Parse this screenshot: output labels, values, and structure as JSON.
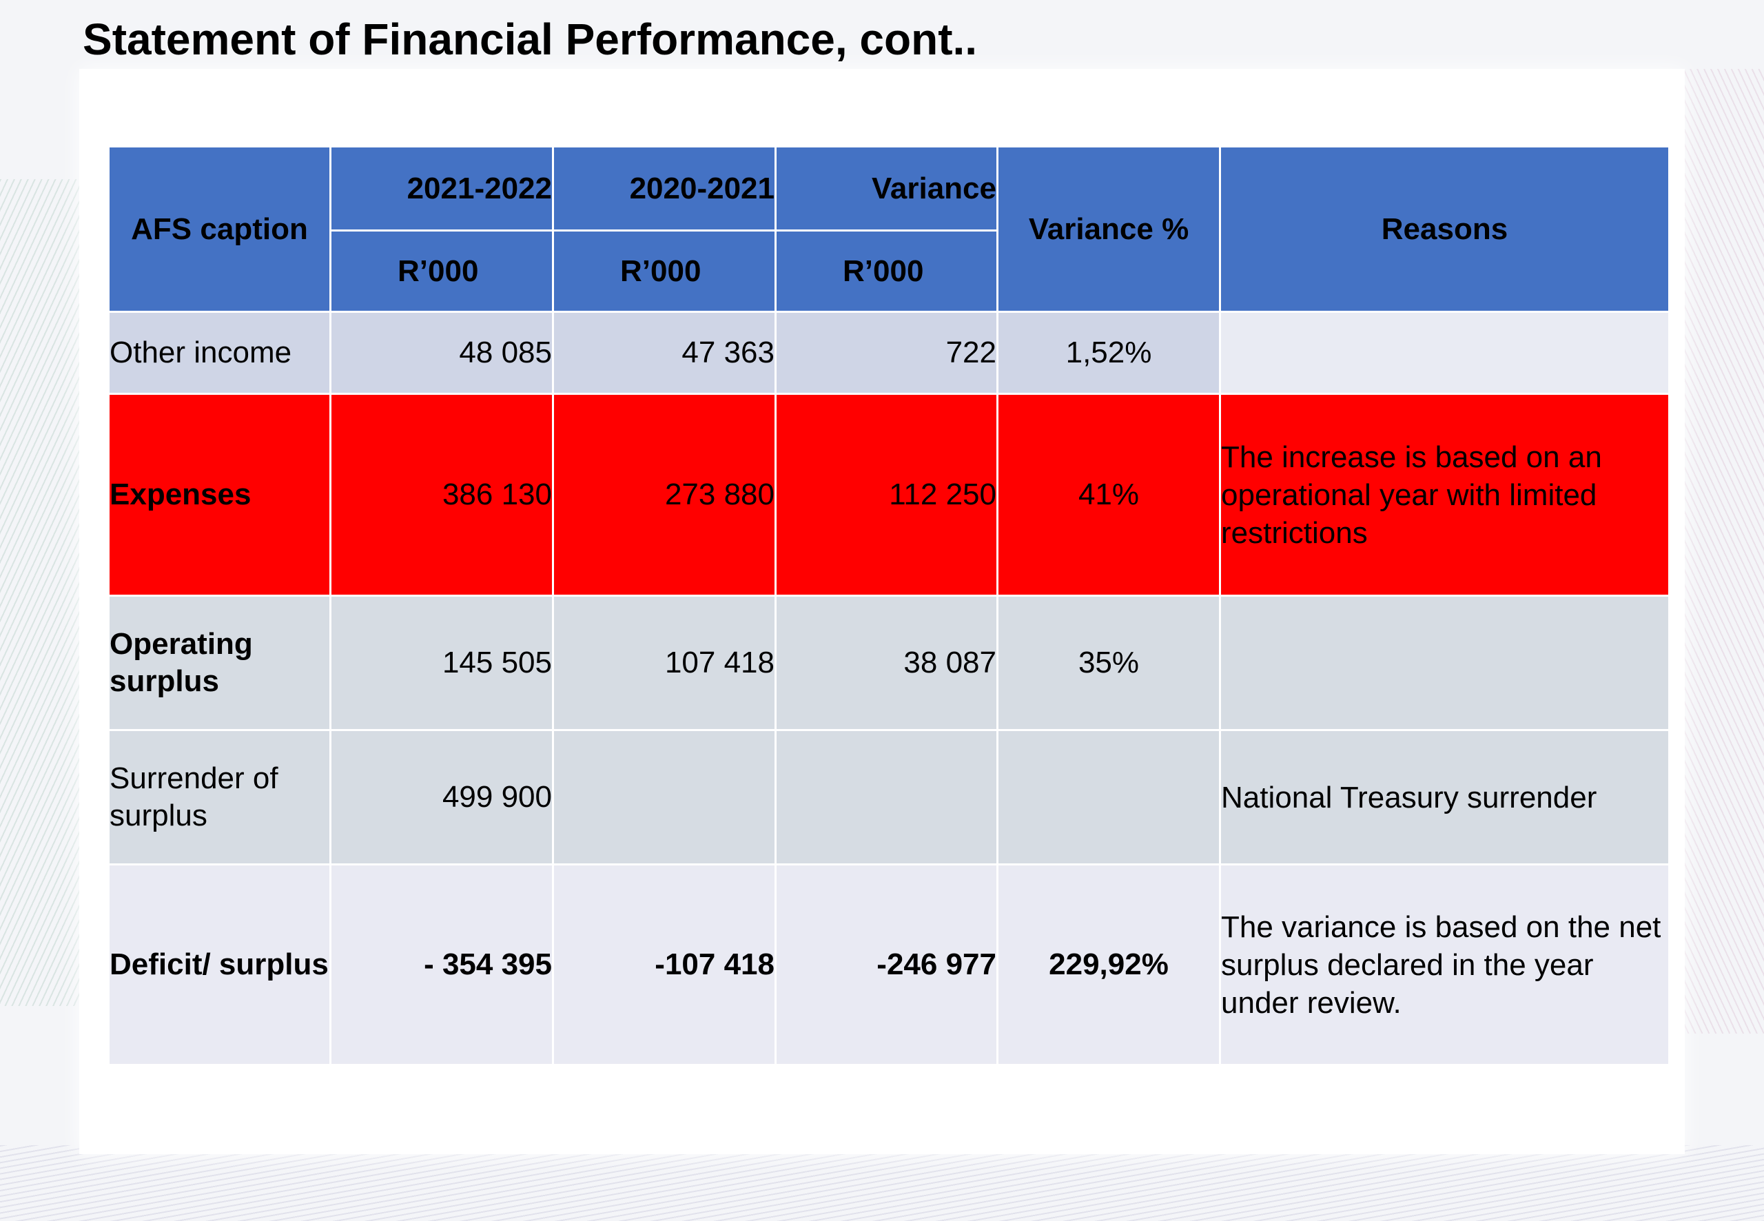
{
  "title": "Statement of Financial Performance, cont..",
  "table": {
    "headers": {
      "caption": "AFS caption",
      "col_2022": "2021-2022",
      "col_2021": "2020-2021",
      "col_variance": "Variance",
      "unit": "R’000",
      "variance_pct": "Variance %",
      "reasons": "Reasons"
    },
    "rows": [
      {
        "caption": "Other income",
        "v2022": "48 085",
        "v2021": "47 363",
        "variance": "722",
        "variance_pct": "1,52%",
        "reasons": ""
      },
      {
        "caption": "Expenses",
        "v2022": "386 130",
        "v2021": "273 880",
        "variance": "112 250",
        "variance_pct": "41%",
        "reasons": "The increase is based on an operational year with limited restrictions"
      },
      {
        "caption": "Operating surplus",
        "v2022": "145 505",
        "v2021": "107 418",
        "variance": "38 087",
        "variance_pct": "35%",
        "reasons": ""
      },
      {
        "caption": "Surrender of surplus",
        "v2022": "499 900",
        "v2021": "",
        "variance": "",
        "variance_pct": "",
        "reasons": "National Treasury surrender"
      },
      {
        "caption": "Deficit/ surplus",
        "v2022": "- 354 395",
        "v2021": "-107 418",
        "variance": "-246 977",
        "variance_pct": "229,92%",
        "reasons": "The variance is based on the net surplus declared in the year under review."
      }
    ]
  },
  "colors": {
    "header_bg": "#4472c4",
    "highlight_row": "#ff0000",
    "row_light": "#cfd5e6",
    "row_grey": "#d6dce3",
    "row_pale": "#e9eaf3"
  }
}
